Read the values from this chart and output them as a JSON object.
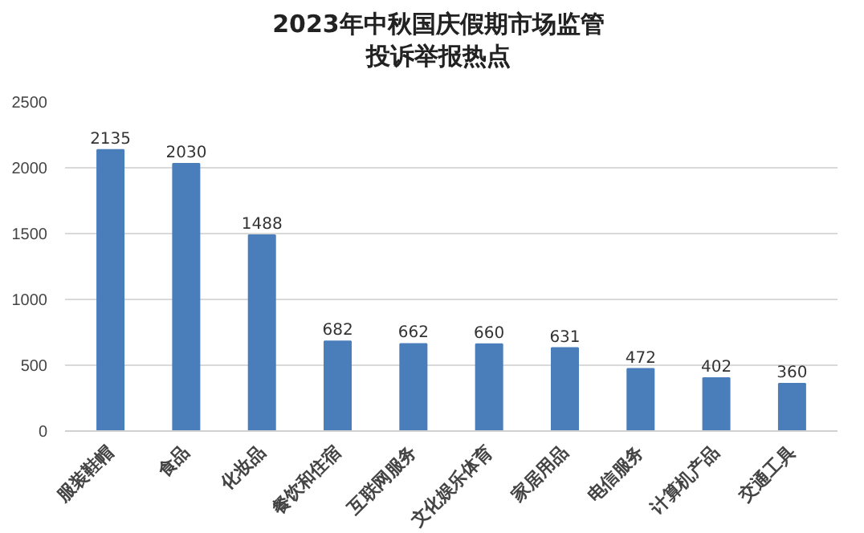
{
  "chart_data": {
    "type": "bar",
    "title": "2023年中秋国庆假期市场监管投诉举报热点",
    "categories": [
      "服装鞋帽",
      "食品",
      "化妆品",
      "餐饮和住宿",
      "互联网服务",
      "文化娱乐体育",
      "家居用品",
      "电信服务",
      "计算机产品",
      "交通工具"
    ],
    "values": [
      2135,
      2030,
      1488,
      682,
      662,
      660,
      631,
      472,
      402,
      360
    ],
    "color": "#4a7ebb",
    "ylim": [
      0,
      2500
    ],
    "yticks": [
      0,
      500,
      1000,
      1500,
      2000,
      2500
    ],
    "grid": "y",
    "data_labels": true
  }
}
